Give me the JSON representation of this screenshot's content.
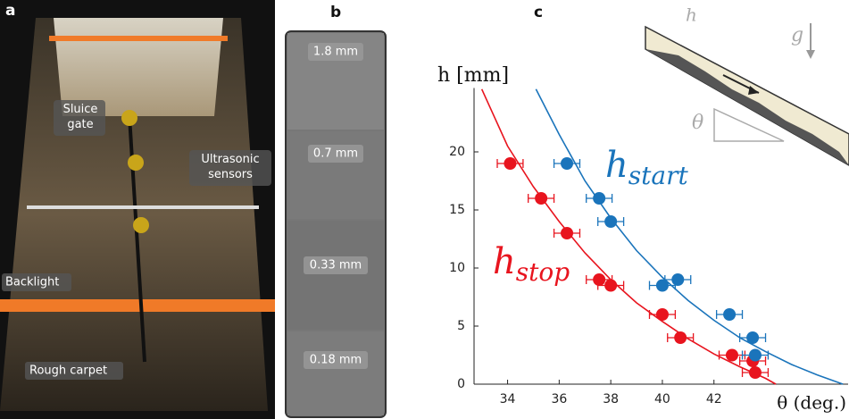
{
  "panels": {
    "a": "a",
    "b": "b",
    "c": "c"
  },
  "photo_a": {
    "labels": [
      "Sluice gate",
      "Ultrasonic sensors",
      "Backlight",
      "Rough carpet"
    ]
  },
  "photo_b": {
    "labels": [
      "1.8 mm",
      "0.7 mm",
      "0.33 mm",
      "0.18 mm"
    ]
  },
  "chart_data": {
    "type": "scatter",
    "y_label": "h [mm]",
    "x_label": "θ (deg.)",
    "inset_labels": {
      "h": "h",
      "g": "g",
      "theta": "θ"
    },
    "xlim": [
      32.7,
      47.2
    ],
    "ylim": [
      0,
      25.5
    ],
    "xticks": [
      34,
      36,
      38,
      40,
      42
    ],
    "yticks": [
      0,
      5,
      10,
      15,
      20
    ],
    "series": [
      {
        "name_main": "h",
        "name_sub": "stop",
        "color": "#e8141e",
        "xerr": 0.5,
        "x": [
          34.1,
          35.3,
          36.3,
          37.55,
          38.0,
          40.0,
          40.7,
          42.7,
          43.5,
          43.6
        ],
        "values": [
          19,
          16,
          13,
          9,
          8.5,
          6,
          4,
          2.5,
          2,
          1
        ],
        "fit_x": [
          33.0,
          34,
          35,
          36,
          37,
          38,
          39,
          40,
          41,
          42,
          43,
          44,
          44.4
        ],
        "fit_values": [
          25.4,
          20.5,
          17,
          14,
          11.3,
          9,
          7,
          5.4,
          3.9,
          2.6,
          1.5,
          0.5,
          0
        ]
      },
      {
        "name_main": "h",
        "name_sub": "start",
        "color": "#1a74bb",
        "xerr": 0.5,
        "x": [
          36.3,
          37.55,
          38.0,
          40.0,
          40.6,
          42.6,
          43.5,
          43.6
        ],
        "values": [
          19,
          16,
          14,
          8.5,
          9,
          6,
          4,
          2.5
        ],
        "fit_x": [
          35.1,
          36,
          37,
          38,
          39,
          40,
          41,
          42,
          43,
          44,
          45,
          46,
          47
        ],
        "fit_values": [
          25.4,
          21.5,
          17.5,
          14.3,
          11.5,
          9.2,
          7.2,
          5.5,
          4,
          2.8,
          1.7,
          0.8,
          0
        ]
      }
    ]
  }
}
